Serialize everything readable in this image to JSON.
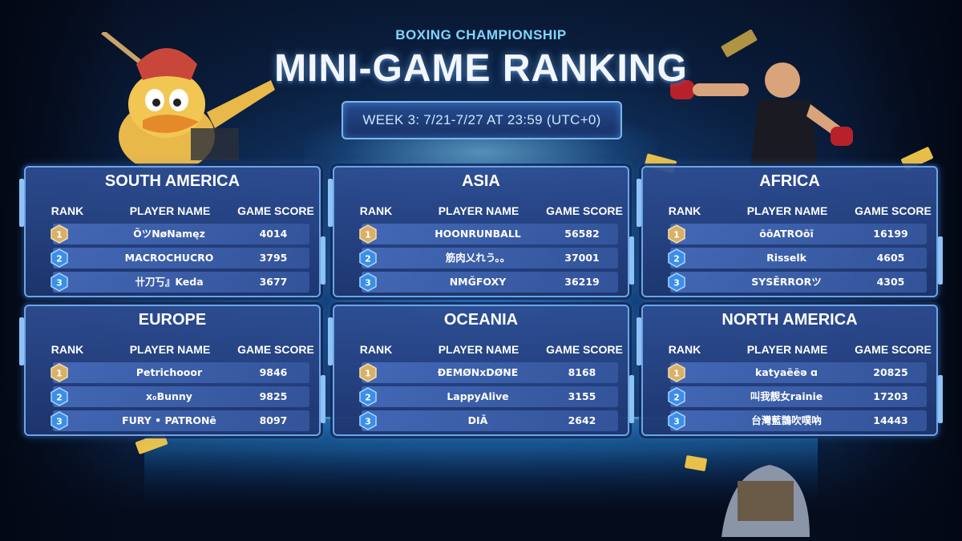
{
  "header": {
    "subtitle": "BOXING CHAMPIONSHIP",
    "title": "MINI-GAME RANKING",
    "week": "WEEK 3: 7/21-7/27 AT 23:59 (UTC+0)"
  },
  "columns": {
    "rank": "RANK",
    "player": "PLAYER NAME",
    "score": "GAME SCORE"
  },
  "medals": {
    "1": "1",
    "2": "2",
    "3": "3"
  },
  "colors": {
    "gold": "#d9b06a",
    "blue": "#3b8fe8",
    "title_accent": "#7fd6ff"
  },
  "regions": {
    "south_america": {
      "name": "SOUTH AMERICA",
      "rows": [
        {
          "player": "ÕツNøNamęz",
          "score": "4014"
        },
        {
          "player": "MACROCHUCRO",
          "score": "3795"
        },
        {
          "player": "卄刀丂』Keda",
          "score": "3677"
        }
      ]
    },
    "asia": {
      "name": "ASIA",
      "rows": [
        {
          "player": "HOONRUNBALL",
          "score": "56582"
        },
        {
          "player": "筋肉乂れう。。",
          "score": "37001"
        },
        {
          "player": "NMǦFOXY",
          "score": "36219"
        }
      ]
    },
    "africa": {
      "name": "AFRICA",
      "rows": [
        {
          "player": "ōōATROōī",
          "score": "16199"
        },
        {
          "player": "Risselk",
          "score": "4605"
        },
        {
          "player": "SYSĒRRORツ",
          "score": "4305"
        }
      ]
    },
    "europe": {
      "name": "EUROPE",
      "rows": [
        {
          "player": "Petrichooor",
          "score": "9846"
        },
        {
          "player": "x₀Bunny",
          "score": "9825"
        },
        {
          "player": "FURY • PATRONē",
          "score": "8097"
        }
      ]
    },
    "oceania": {
      "name": "OCEANIA",
      "rows": [
        {
          "player": "ĐEMØNxDØNE",
          "score": "8168"
        },
        {
          "player": "LappyAlive",
          "score": "3155"
        },
        {
          "player": "DIĀ",
          "score": "2642"
        }
      ]
    },
    "north_america": {
      "name": "NORTH AMERICA",
      "rows": [
        {
          "player": "katyaēēə ɑ",
          "score": "20825"
        },
        {
          "player": "叫我靚女rainie",
          "score": "17203"
        },
        {
          "player": "台灣藍鵲吹噗吶",
          "score": "14443"
        }
      ]
    }
  }
}
